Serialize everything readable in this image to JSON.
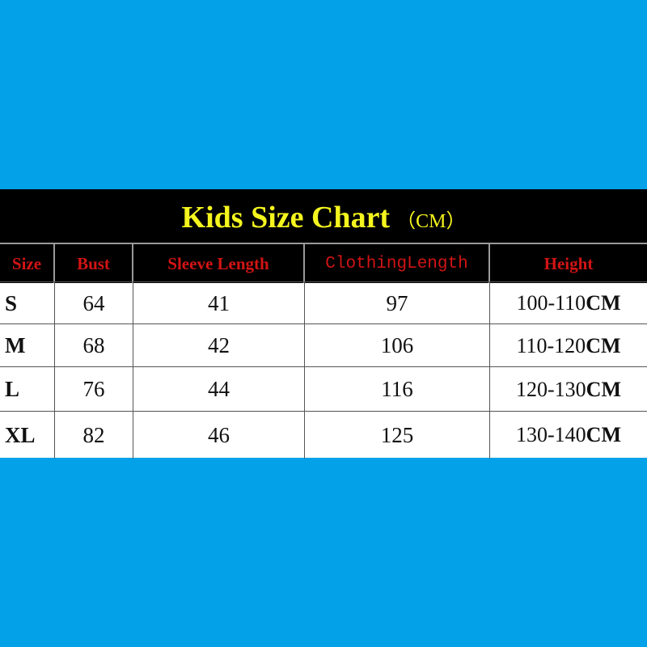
{
  "title": {
    "text": "Kids Size Chart",
    "unit": "（CM）"
  },
  "colors": {
    "background": "#03a2e8",
    "title": "#f5f51e",
    "header": "#d21414"
  },
  "headers": [
    "Size",
    "Bust",
    "Sleeve Length",
    "ClothingLength",
    "Height"
  ],
  "rows": [
    {
      "size": "S",
      "bust": "64",
      "sleeve": "41",
      "length": "97",
      "height_range": "100-110",
      "height_unit": "CM"
    },
    {
      "size": "M",
      "bust": "68",
      "sleeve": "42",
      "length": "106",
      "height_range": "110-120",
      "height_unit": "CM"
    },
    {
      "size": "L",
      "bust": "76",
      "sleeve": "44",
      "length": "116",
      "height_range": "120-130",
      "height_unit": "CM"
    },
    {
      "size": "XL",
      "bust": "82",
      "sleeve": "46",
      "length": "125",
      "height_range": "130-140",
      "height_unit": "CM"
    }
  ]
}
